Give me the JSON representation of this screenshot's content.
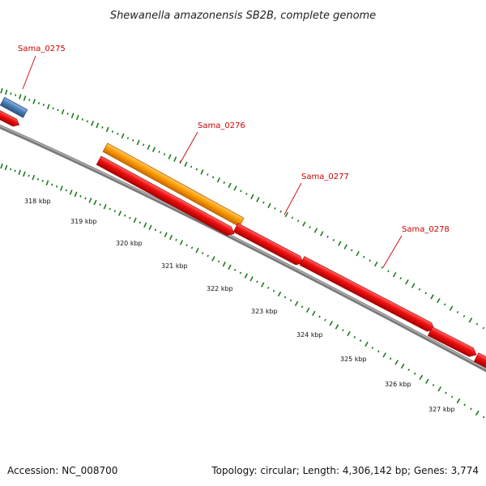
{
  "title": "Shewanella amazonensis SB2B, complete genome",
  "genes": [
    {
      "label": "Sama_0275"
    },
    {
      "label": "Sama_0276"
    },
    {
      "label": "Sama_0277"
    },
    {
      "label": "Sama_0278"
    }
  ],
  "ticks": [
    "318 kbp",
    "319 kbp",
    "320 kbp",
    "321 kbp",
    "322 kbp",
    "323 kbp",
    "324 kbp",
    "325 kbp",
    "326 kbp",
    "327 kbp"
  ],
  "footer": {
    "accession": "Accession: NC_008700",
    "topology": "Topology: circular; Length: 4,306,142 bp; Genes: 3,774"
  },
  "colors": {
    "cds": "#ee0000",
    "highlight_gene": "#ff9900",
    "other_feature": "#4a7fb8",
    "backbone": "#888888",
    "gc_ticks": "#1d7a1d",
    "label": "#cc0000"
  }
}
